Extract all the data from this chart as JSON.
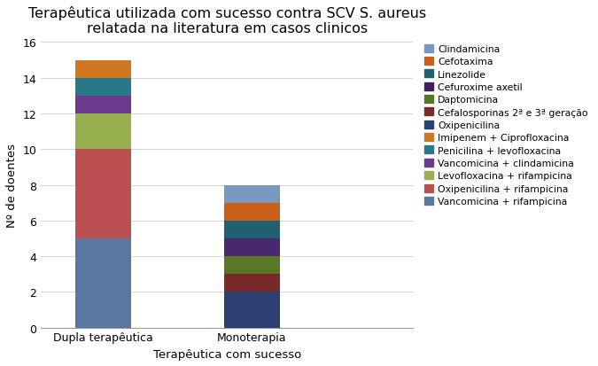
{
  "title_line1": "Terapêutica utilizada com sucesso contra SCV S. aureus",
  "title_line2": "relatada na literatura em casos clinicos",
  "xlabel": "Terapêutica com sucesso",
  "ylabel": "Nº de doentes",
  "categories": [
    "Dupla terapêutica",
    "Monoterapia"
  ],
  "ylim": [
    0,
    16
  ],
  "yticks": [
    0,
    2,
    4,
    6,
    8,
    10,
    12,
    14,
    16
  ],
  "dupla_stacks": [
    [
      5,
      "#5878A0"
    ],
    [
      5,
      "#BC5050"
    ],
    [
      2,
      "#96B050"
    ],
    [
      1,
      "#6B3A8C"
    ],
    [
      1,
      "#287888"
    ],
    [
      1,
      "#D07820"
    ]
  ],
  "mono_stacks": [
    [
      2,
      "#2B4070"
    ],
    [
      1,
      "#7A2828"
    ],
    [
      1,
      "#587828"
    ],
    [
      1,
      "#4A2870"
    ],
    [
      1,
      "#206070"
    ],
    [
      1,
      "#C86018"
    ],
    [
      1,
      "#7898C0"
    ]
  ],
  "legend_entries": [
    [
      "#7898C0",
      "Clindamicina"
    ],
    [
      "#C86018",
      "Cefotaxima"
    ],
    [
      "#206070",
      "Linezolide"
    ],
    [
      "#3D2060",
      "Cefuroxime axetil"
    ],
    [
      "#587828",
      "Daptomicina"
    ],
    [
      "#7A2828",
      "Cefalosporinas 2ª e 3ª geração"
    ],
    [
      "#2B4070",
      "Oxipenicilina"
    ],
    [
      "#D07820",
      "Imipenem + Ciprofloxacina"
    ],
    [
      "#287888",
      "Penicilina + levofloxacina"
    ],
    [
      "#6B3A8C",
      "Vancomicina + clindamicina"
    ],
    [
      "#96B050",
      "Levofloxacina + rifampicina"
    ],
    [
      "#BC5050",
      "Oxipenicilina + rifampicina"
    ],
    [
      "#5878A0",
      "Vancomicina + rifampicina"
    ]
  ],
  "bar_width": 0.45,
  "x_positions": [
    0.7,
    1.9
  ],
  "xlim": [
    0.2,
    3.2
  ],
  "background_color": "#ffffff",
  "title_fontsize": 11.5,
  "axis_fontsize": 9.5,
  "tick_fontsize": 9,
  "legend_fontsize": 7.8
}
